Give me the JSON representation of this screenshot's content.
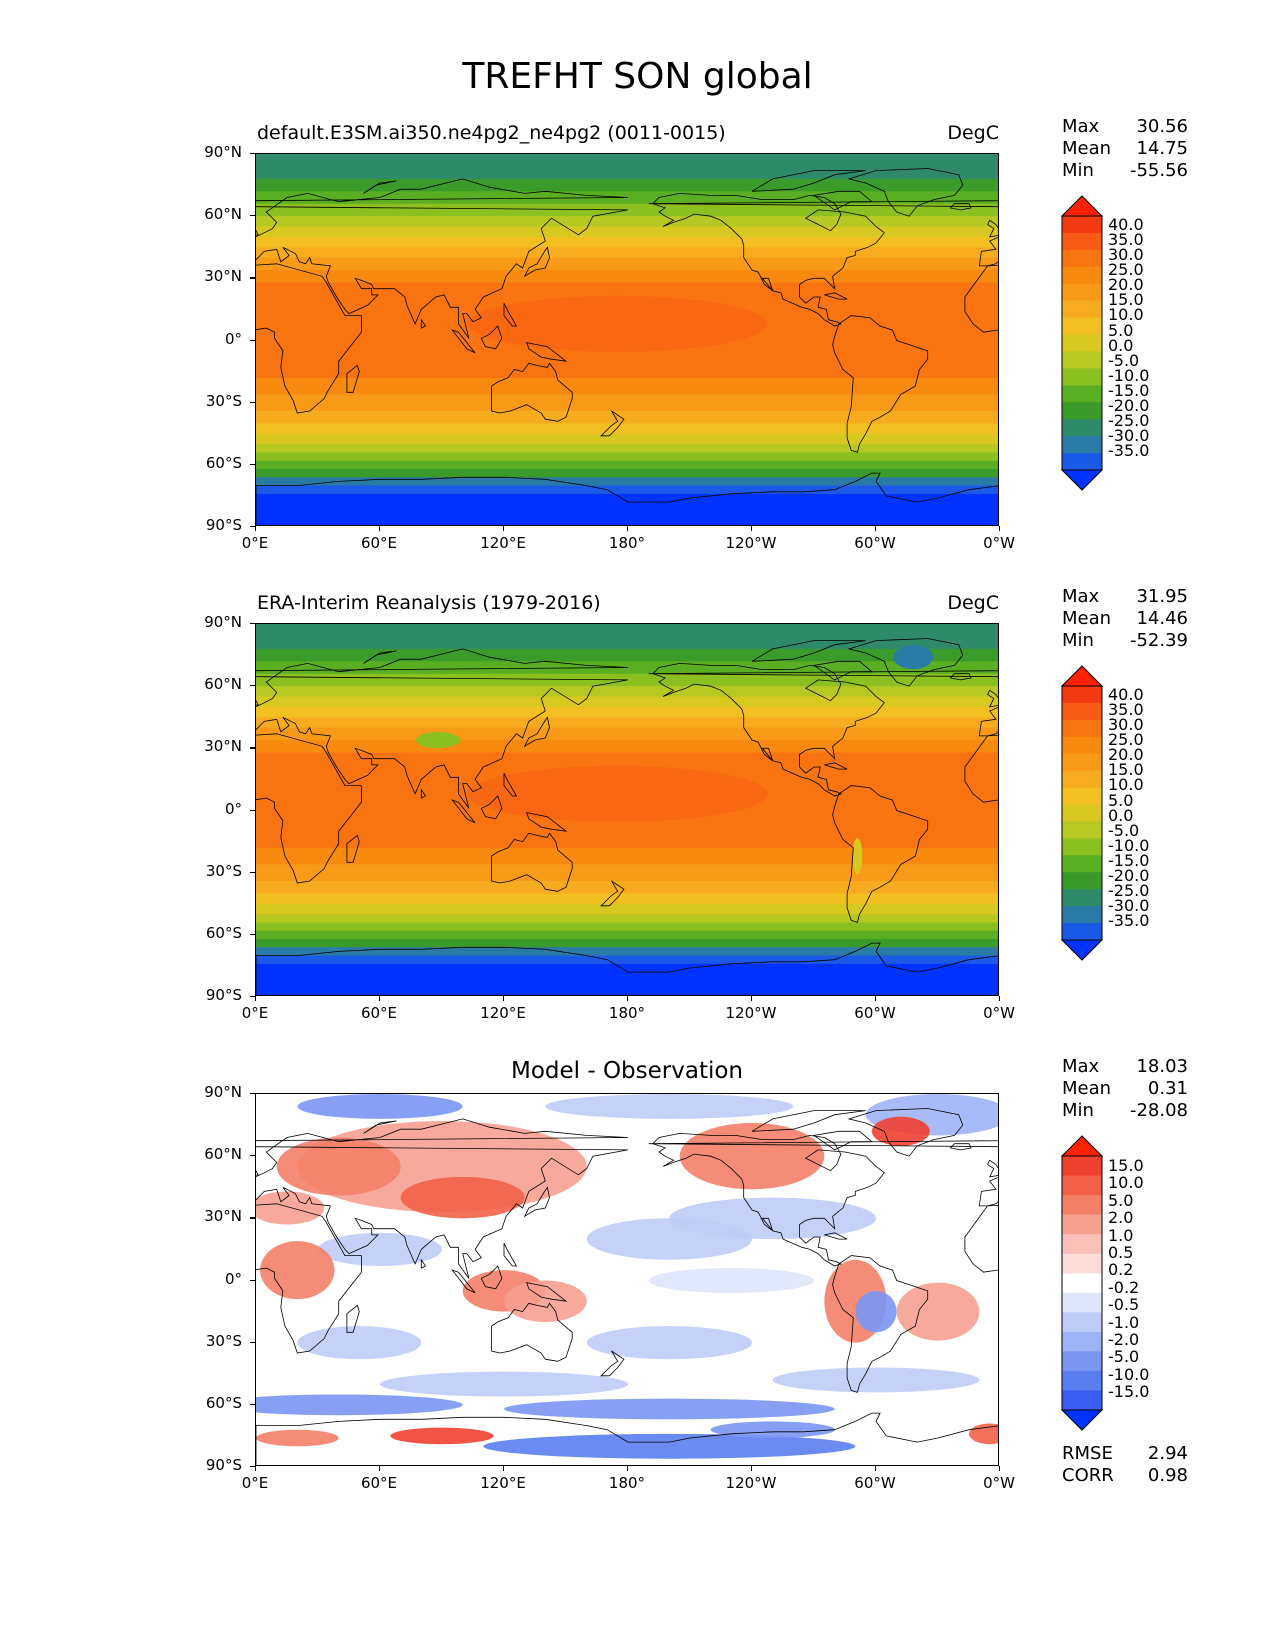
{
  "title": "TREFHT SON global",
  "lat_ticks": [
    "90°N",
    "60°N",
    "30°N",
    "0°",
    "30°S",
    "60°S",
    "90°S"
  ],
  "lon_ticks": [
    "0°E",
    "60°E",
    "120°E",
    "180°",
    "120°W",
    "60°W",
    "0°W"
  ],
  "panels": [
    {
      "title": "default.E3SM.ai350.ne4pg2_ne4pg2 (0011-0015)",
      "units": "DegC",
      "stats": {
        "max_label": "Max",
        "max": "30.56",
        "mean_label": "Mean",
        "mean": "14.75",
        "min_label": "Min",
        "min": "-55.56"
      },
      "colorbar_labels": [
        "40.0",
        "35.0",
        "30.0",
        "25.0",
        "20.0",
        "15.0",
        "10.0",
        "5.0",
        "0.0",
        "-5.0",
        "-10.0",
        "-15.0",
        "-20.0",
        "-25.0",
        "-30.0",
        "-35.0"
      ]
    },
    {
      "title": "ERA-Interim Reanalysis (1979-2016)",
      "units": "DegC",
      "stats": {
        "max_label": "Max",
        "max": "31.95",
        "mean_label": "Mean",
        "mean": "14.46",
        "min_label": "Min",
        "min": "-52.39"
      },
      "colorbar_labels": [
        "40.0",
        "35.0",
        "30.0",
        "25.0",
        "20.0",
        "15.0",
        "10.0",
        "5.0",
        "0.0",
        "-5.0",
        "-10.0",
        "-15.0",
        "-20.0",
        "-25.0",
        "-30.0",
        "-35.0"
      ]
    },
    {
      "title": "Model - Observation",
      "stats": {
        "max_label": "Max",
        "max": "18.03",
        "mean_label": "Mean",
        "mean": "0.31",
        "min_label": "Min",
        "min": "-28.08"
      },
      "colorbar_labels": [
        "15.0",
        "10.0",
        "5.0",
        "2.0",
        "1.0",
        "0.5",
        "0.2",
        "-0.2",
        "-0.5",
        "-1.0",
        "-2.0",
        "-5.0",
        "-10.0",
        "-15.0"
      ],
      "metrics": {
        "rmse_label": "RMSE",
        "rmse": "2.94",
        "corr_label": "CORR",
        "corr": "0.98"
      }
    }
  ],
  "colors": {
    "temp_scale": [
      "#0033ff",
      "#1a5ae6",
      "#2a7aa8",
      "#2f8a6a",
      "#3a9a2a",
      "#5aae22",
      "#8cc020",
      "#b8c822",
      "#d8c820",
      "#f2c020",
      "#f6ac1e",
      "#f89a18",
      "#f88a10",
      "#f87410",
      "#f85a14",
      "#f43a10",
      "#ff2200"
    ],
    "diff_scale": [
      "#0033ff",
      "#3a5cf0",
      "#5a7ef0",
      "#7a96f2",
      "#9eb2f6",
      "#c0ccf8",
      "#dfe6fb",
      "#ffffff",
      "#fcdcd8",
      "#f8c0b8",
      "#f6a090",
      "#f48068",
      "#f26048",
      "#f04030",
      "#ff2200"
    ],
    "coast": "#000000"
  }
}
